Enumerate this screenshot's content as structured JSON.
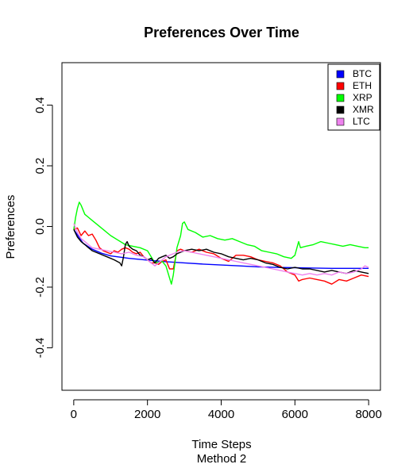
{
  "chart_data": {
    "type": "line",
    "title": "Preferences Over Time",
    "xlabel": "Time Steps",
    "subtitle": "Method 2",
    "ylabel": "Preferences",
    "xlim": [
      -320,
      8320
    ],
    "ylim": [
      -0.54,
      0.54
    ],
    "x_ticks": [
      0,
      2000,
      4000,
      6000,
      8000
    ],
    "y_ticks": [
      -0.4,
      -0.2,
      0.0,
      0.2,
      0.4
    ],
    "x_tick_labels": [
      "0",
      "2000",
      "4000",
      "6000",
      "8000"
    ],
    "y_tick_labels": [
      "-0.4",
      "-0.2",
      "0.0",
      "0.2",
      "0.4"
    ],
    "legend_position": "top-right",
    "series": [
      {
        "name": "BTC",
        "color": "#0000ff",
        "points": [
          [
            0,
            -0.01
          ],
          [
            250,
            -0.055
          ],
          [
            500,
            -0.075
          ],
          [
            750,
            -0.088
          ],
          [
            1000,
            -0.097
          ],
          [
            1500,
            -0.105
          ],
          [
            2000,
            -0.111
          ],
          [
            2500,
            -0.116
          ],
          [
            3000,
            -0.12
          ],
          [
            3500,
            -0.124
          ],
          [
            4000,
            -0.127
          ],
          [
            4500,
            -0.13
          ],
          [
            5000,
            -0.133
          ],
          [
            5500,
            -0.135
          ],
          [
            6000,
            -0.136
          ],
          [
            6500,
            -0.137
          ],
          [
            7000,
            -0.138
          ],
          [
            7500,
            -0.138
          ],
          [
            8000,
            -0.138
          ]
        ]
      },
      {
        "name": "ETH",
        "color": "#ff0000",
        "points": [
          [
            0,
            -0.01
          ],
          [
            100,
            -0.005
          ],
          [
            200,
            -0.03
          ],
          [
            300,
            -0.015
          ],
          [
            400,
            -0.03
          ],
          [
            500,
            -0.025
          ],
          [
            600,
            -0.045
          ],
          [
            700,
            -0.07
          ],
          [
            800,
            -0.08
          ],
          [
            900,
            -0.085
          ],
          [
            1000,
            -0.09
          ],
          [
            1100,
            -0.08
          ],
          [
            1200,
            -0.085
          ],
          [
            1300,
            -0.075
          ],
          [
            1400,
            -0.07
          ],
          [
            1500,
            -0.075
          ],
          [
            1600,
            -0.085
          ],
          [
            1700,
            -0.09
          ],
          [
            1800,
            -0.085
          ],
          [
            1900,
            -0.1
          ],
          [
            2000,
            -0.11
          ],
          [
            2100,
            -0.12
          ],
          [
            2200,
            -0.12
          ],
          [
            2300,
            -0.125
          ],
          [
            2400,
            -0.115
          ],
          [
            2500,
            -0.11
          ],
          [
            2600,
            -0.14
          ],
          [
            2700,
            -0.14
          ],
          [
            2800,
            -0.08
          ],
          [
            2900,
            -0.075
          ],
          [
            3000,
            -0.08
          ],
          [
            3200,
            -0.085
          ],
          [
            3400,
            -0.075
          ],
          [
            3600,
            -0.085
          ],
          [
            3800,
            -0.09
          ],
          [
            4000,
            -0.105
          ],
          [
            4200,
            -0.115
          ],
          [
            4400,
            -0.095
          ],
          [
            4600,
            -0.095
          ],
          [
            4800,
            -0.1
          ],
          [
            5000,
            -0.11
          ],
          [
            5200,
            -0.115
          ],
          [
            5400,
            -0.12
          ],
          [
            5600,
            -0.13
          ],
          [
            5800,
            -0.15
          ],
          [
            6000,
            -0.16
          ],
          [
            6100,
            -0.18
          ],
          [
            6200,
            -0.175
          ],
          [
            6400,
            -0.17
          ],
          [
            6600,
            -0.175
          ],
          [
            6800,
            -0.18
          ],
          [
            7000,
            -0.19
          ],
          [
            7200,
            -0.175
          ],
          [
            7400,
            -0.18
          ],
          [
            7600,
            -0.17
          ],
          [
            7800,
            -0.16
          ],
          [
            8000,
            -0.165
          ]
        ]
      },
      {
        "name": "XRP",
        "color": "#00ff00",
        "points": [
          [
            0,
            -0.01
          ],
          [
            50,
            0.03
          ],
          [
            100,
            0.06
          ],
          [
            150,
            0.08
          ],
          [
            200,
            0.07
          ],
          [
            300,
            0.04
          ],
          [
            400,
            0.03
          ],
          [
            500,
            0.02
          ],
          [
            600,
            0.01
          ],
          [
            800,
            -0.01
          ],
          [
            1000,
            -0.03
          ],
          [
            1200,
            -0.045
          ],
          [
            1400,
            -0.06
          ],
          [
            1600,
            -0.065
          ],
          [
            1800,
            -0.07
          ],
          [
            2000,
            -0.08
          ],
          [
            2200,
            -0.12
          ],
          [
            2400,
            -0.115
          ],
          [
            2500,
            -0.13
          ],
          [
            2600,
            -0.17
          ],
          [
            2650,
            -0.19
          ],
          [
            2700,
            -0.16
          ],
          [
            2800,
            -0.07
          ],
          [
            2900,
            -0.03
          ],
          [
            2950,
            0.01
          ],
          [
            3000,
            0.015
          ],
          [
            3100,
            -0.01
          ],
          [
            3300,
            -0.02
          ],
          [
            3500,
            -0.035
          ],
          [
            3700,
            -0.03
          ],
          [
            3900,
            -0.04
          ],
          [
            4100,
            -0.045
          ],
          [
            4300,
            -0.04
          ],
          [
            4500,
            -0.05
          ],
          [
            4700,
            -0.06
          ],
          [
            4900,
            -0.065
          ],
          [
            5100,
            -0.08
          ],
          [
            5300,
            -0.085
          ],
          [
            5500,
            -0.09
          ],
          [
            5700,
            -0.1
          ],
          [
            5900,
            -0.105
          ],
          [
            6000,
            -0.095
          ],
          [
            6100,
            -0.05
          ],
          [
            6150,
            -0.07
          ],
          [
            6300,
            -0.065
          ],
          [
            6500,
            -0.06
          ],
          [
            6700,
            -0.05
          ],
          [
            6900,
            -0.055
          ],
          [
            7100,
            -0.06
          ],
          [
            7300,
            -0.065
          ],
          [
            7500,
            -0.06
          ],
          [
            7700,
            -0.065
          ],
          [
            7900,
            -0.07
          ],
          [
            8000,
            -0.07
          ]
        ]
      },
      {
        "name": "XMR",
        "color": "#000000",
        "points": [
          [
            0,
            -0.01
          ],
          [
            100,
            -0.035
          ],
          [
            200,
            -0.05
          ],
          [
            300,
            -0.06
          ],
          [
            400,
            -0.07
          ],
          [
            500,
            -0.08
          ],
          [
            700,
            -0.09
          ],
          [
            900,
            -0.1
          ],
          [
            1100,
            -0.11
          ],
          [
            1250,
            -0.12
          ],
          [
            1300,
            -0.13
          ],
          [
            1350,
            -0.1
          ],
          [
            1400,
            -0.06
          ],
          [
            1450,
            -0.05
          ],
          [
            1500,
            -0.065
          ],
          [
            1600,
            -0.075
          ],
          [
            1700,
            -0.08
          ],
          [
            1800,
            -0.095
          ],
          [
            1900,
            -0.1
          ],
          [
            2000,
            -0.11
          ],
          [
            2100,
            -0.105
          ],
          [
            2200,
            -0.12
          ],
          [
            2300,
            -0.105
          ],
          [
            2400,
            -0.1
          ],
          [
            2500,
            -0.095
          ],
          [
            2600,
            -0.105
          ],
          [
            2700,
            -0.1
          ],
          [
            2800,
            -0.09
          ],
          [
            3000,
            -0.08
          ],
          [
            3200,
            -0.075
          ],
          [
            3400,
            -0.08
          ],
          [
            3600,
            -0.075
          ],
          [
            3800,
            -0.085
          ],
          [
            4000,
            -0.09
          ],
          [
            4200,
            -0.1
          ],
          [
            4400,
            -0.105
          ],
          [
            4600,
            -0.11
          ],
          [
            4800,
            -0.105
          ],
          [
            5000,
            -0.11
          ],
          [
            5200,
            -0.12
          ],
          [
            5400,
            -0.125
          ],
          [
            5600,
            -0.135
          ],
          [
            5800,
            -0.14
          ],
          [
            6000,
            -0.135
          ],
          [
            6200,
            -0.14
          ],
          [
            6400,
            -0.14
          ],
          [
            6600,
            -0.145
          ],
          [
            6800,
            -0.15
          ],
          [
            7000,
            -0.145
          ],
          [
            7200,
            -0.15
          ],
          [
            7400,
            -0.155
          ],
          [
            7600,
            -0.145
          ],
          [
            7800,
            -0.15
          ],
          [
            8000,
            -0.155
          ]
        ]
      },
      {
        "name": "LTC",
        "color": "#ee82ee",
        "points": [
          [
            0,
            0.01
          ],
          [
            100,
            -0.02
          ],
          [
            200,
            -0.04
          ],
          [
            300,
            -0.05
          ],
          [
            400,
            -0.06
          ],
          [
            500,
            -0.07
          ],
          [
            700,
            -0.075
          ],
          [
            900,
            -0.08
          ],
          [
            1100,
            -0.085
          ],
          [
            1300,
            -0.09
          ],
          [
            1500,
            -0.085
          ],
          [
            1700,
            -0.095
          ],
          [
            1900,
            -0.1
          ],
          [
            2000,
            -0.11
          ],
          [
            2100,
            -0.12
          ],
          [
            2200,
            -0.13
          ],
          [
            2300,
            -0.12
          ],
          [
            2400,
            -0.11
          ],
          [
            2500,
            -0.1
          ],
          [
            2600,
            -0.095
          ],
          [
            2700,
            -0.09
          ],
          [
            2800,
            -0.085
          ],
          [
            3000,
            -0.08
          ],
          [
            3200,
            -0.085
          ],
          [
            3400,
            -0.09
          ],
          [
            3600,
            -0.095
          ],
          [
            3800,
            -0.1
          ],
          [
            4000,
            -0.105
          ],
          [
            4200,
            -0.11
          ],
          [
            4400,
            -0.115
          ],
          [
            4600,
            -0.12
          ],
          [
            4800,
            -0.125
          ],
          [
            5000,
            -0.13
          ],
          [
            5200,
            -0.135
          ],
          [
            5400,
            -0.14
          ],
          [
            5600,
            -0.145
          ],
          [
            5800,
            -0.15
          ],
          [
            6000,
            -0.155
          ],
          [
            6200,
            -0.16
          ],
          [
            6400,
            -0.155
          ],
          [
            6600,
            -0.16
          ],
          [
            6800,
            -0.155
          ],
          [
            7000,
            -0.16
          ],
          [
            7200,
            -0.15
          ],
          [
            7400,
            -0.155
          ],
          [
            7600,
            -0.15
          ],
          [
            7800,
            -0.14
          ],
          [
            7900,
            -0.13
          ],
          [
            8000,
            -0.135
          ]
        ]
      }
    ]
  }
}
